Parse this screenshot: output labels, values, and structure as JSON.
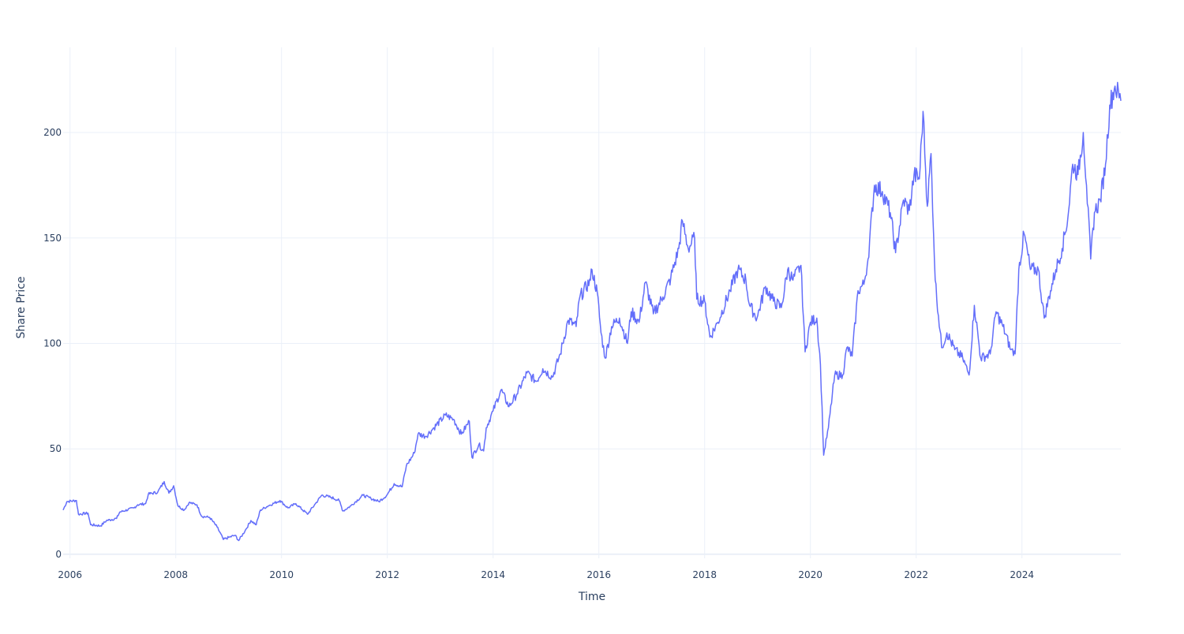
{
  "chart_data": {
    "type": "line",
    "title": "",
    "xlabel": "Time",
    "ylabel": "Share Price",
    "xlim": [
      2005.87,
      2025.87
    ],
    "ylim": [
      -1.9,
      240.4
    ],
    "grid": true,
    "legend": "none",
    "x_ticks": [
      "2006",
      "2008",
      "2010",
      "2012",
      "2014",
      "2016",
      "2018",
      "2020",
      "2022",
      "2024"
    ],
    "x_tick_values": [
      2006,
      2008,
      2010,
      2012,
      2014,
      2016,
      2018,
      2020,
      2022,
      2024
    ],
    "y_ticks": [
      "0",
      "50",
      "100",
      "150",
      "200"
    ],
    "y_tick_values": [
      0,
      50,
      100,
      150,
      200
    ],
    "line_color": "#636efa",
    "series": [
      {
        "name": "Share Price",
        "x": [
          2005.87,
          2005.94,
          2006.12,
          2006.16,
          2006.34,
          2006.39,
          2006.58,
          2006.69,
          2006.88,
          2006.94,
          2007.21,
          2007.28,
          2007.43,
          2007.48,
          2007.66,
          2007.78,
          2007.87,
          2007.96,
          2008.04,
          2008.16,
          2008.25,
          2008.4,
          2008.49,
          2008.64,
          2008.78,
          2008.9,
          2009.0,
          2009.12,
          2009.19,
          2009.33,
          2009.42,
          2009.52,
          2009.6,
          2009.75,
          2009.97,
          2010.12,
          2010.27,
          2010.49,
          2010.64,
          2010.76,
          2010.94,
          2011.09,
          2011.16,
          2011.31,
          2011.54,
          2011.69,
          2011.84,
          2011.99,
          2012.13,
          2012.28,
          2012.36,
          2012.51,
          2012.58,
          2012.73,
          2012.88,
          2013.1,
          2013.25,
          2013.4,
          2013.55,
          2013.6,
          2013.73,
          2013.82,
          2013.87,
          2014.0,
          2014.15,
          2014.3,
          2014.45,
          2014.64,
          2014.82,
          2014.94,
          2015.12,
          2015.27,
          2015.42,
          2015.57,
          2015.64,
          2015.84,
          2015.87,
          2015.97,
          2016.04,
          2016.12,
          2016.24,
          2016.39,
          2016.54,
          2016.61,
          2016.76,
          2016.88,
          2017.03,
          2017.21,
          2017.36,
          2017.51,
          2017.58,
          2017.69,
          2017.81,
          2017.85,
          2018.0,
          2018.1,
          2018.25,
          2018.48,
          2018.63,
          2018.78,
          2018.85,
          2018.99,
          2019.15,
          2019.3,
          2019.45,
          2019.57,
          2019.67,
          2019.82,
          2019.9,
          2020.0,
          2020.12,
          2020.19,
          2020.25,
          2020.34,
          2020.46,
          2020.61,
          2020.69,
          2020.79,
          2020.9,
          2021.01,
          2021.09,
          2021.21,
          2021.36,
          2021.51,
          2021.61,
          2021.76,
          2021.87,
          2021.96,
          2022.06,
          2022.13,
          2022.21,
          2022.28,
          2022.36,
          2022.48,
          2022.58,
          2022.73,
          2022.88,
          2023.0,
          2023.1,
          2023.22,
          2023.4,
          2023.51,
          2023.64,
          2023.79,
          2023.87,
          2023.94,
          2024.04,
          2024.16,
          2024.31,
          2024.42,
          2024.54,
          2024.64,
          2024.76,
          2024.87,
          2024.96,
          2025.06,
          2025.16,
          2025.22,
          2025.3,
          2025.37,
          2025.48,
          2025.58,
          2025.66,
          2025.76,
          2025.87
        ],
        "y": [
          21,
          25,
          25.5,
          19,
          19.5,
          14,
          13.5,
          16,
          17,
          20,
          22,
          23.5,
          24,
          28.5,
          29.5,
          34.5,
          29,
          32.5,
          23,
          21,
          24.5,
          23.5,
          18,
          17.5,
          13,
          7,
          8,
          9,
          6.5,
          12,
          16,
          14,
          21,
          23,
          25.5,
          22,
          24,
          19,
          24,
          28,
          27,
          25.5,
          20.5,
          23,
          28,
          26.5,
          25,
          28,
          33.5,
          32,
          42,
          48,
          57,
          56,
          60,
          66,
          64,
          57,
          63,
          46,
          52,
          49,
          60,
          68,
          78,
          70,
          76,
          86,
          82,
          88,
          84,
          95,
          111,
          108,
          122,
          130,
          135,
          124,
          105,
          93,
          108,
          112,
          100,
          115,
          110,
          129,
          114,
          122,
          131,
          145,
          158,
          145,
          150,
          121,
          120,
          103,
          110,
          125,
          135,
          130,
          118,
          112,
          127,
          120,
          117,
          135,
          130,
          137,
          96,
          110,
          112,
          90,
          47,
          60,
          85,
          85,
          98,
          94,
          125,
          128,
          140,
          175,
          172,
          162,
          143,
          168,
          163,
          180,
          178,
          210,
          165,
          190,
          130,
          98,
          105,
          97,
          93,
          85,
          118,
          93,
          95,
          115,
          108,
          97,
          95,
          135,
          152,
          135,
          135,
          112,
          125,
          135,
          145,
          160,
          185,
          180,
          200,
          175,
          140,
          162,
          168,
          185,
          213,
          222,
          215
        ]
      }
    ]
  }
}
